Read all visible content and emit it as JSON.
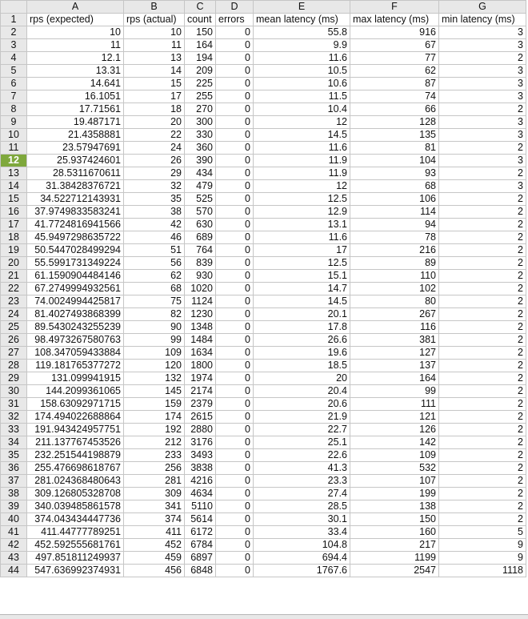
{
  "columns": [
    "A",
    "B",
    "C",
    "D",
    "E",
    "F",
    "G"
  ],
  "selected_row": "12",
  "header_row": {
    "row_label": "1",
    "cells": [
      "rps (expected)",
      "rps (actual)",
      "count",
      "errors",
      "mean latency (ms)",
      "max latency (ms)",
      "min latency (ms)"
    ]
  },
  "rows": [
    {
      "label": "2",
      "cells": [
        "10",
        "10",
        "150",
        "0",
        "55.8",
        "916",
        "3"
      ]
    },
    {
      "label": "3",
      "cells": [
        "11",
        "11",
        "164",
        "0",
        "9.9",
        "67",
        "3"
      ]
    },
    {
      "label": "4",
      "cells": [
        "12.1",
        "13",
        "194",
        "0",
        "11.6",
        "77",
        "2"
      ]
    },
    {
      "label": "5",
      "cells": [
        "13.31",
        "14",
        "209",
        "0",
        "10.5",
        "62",
        "3"
      ]
    },
    {
      "label": "6",
      "cells": [
        "14.641",
        "15",
        "225",
        "0",
        "10.6",
        "87",
        "3"
      ]
    },
    {
      "label": "7",
      "cells": [
        "16.1051",
        "17",
        "255",
        "0",
        "11.5",
        "74",
        "3"
      ]
    },
    {
      "label": "8",
      "cells": [
        "17.71561",
        "18",
        "270",
        "0",
        "10.4",
        "66",
        "2"
      ]
    },
    {
      "label": "9",
      "cells": [
        "19.487171",
        "20",
        "300",
        "0",
        "12",
        "128",
        "3"
      ]
    },
    {
      "label": "10",
      "cells": [
        "21.4358881",
        "22",
        "330",
        "0",
        "14.5",
        "135",
        "3"
      ]
    },
    {
      "label": "11",
      "cells": [
        "23.57947691",
        "24",
        "360",
        "0",
        "11.6",
        "81",
        "2"
      ]
    },
    {
      "label": "12",
      "cells": [
        "25.937424601",
        "26",
        "390",
        "0",
        "11.9",
        "104",
        "3"
      ]
    },
    {
      "label": "13",
      "cells": [
        "28.5311670611",
        "29",
        "434",
        "0",
        "11.9",
        "93",
        "2"
      ]
    },
    {
      "label": "14",
      "cells": [
        "31.38428376721",
        "32",
        "479",
        "0",
        "12",
        "68",
        "3"
      ]
    },
    {
      "label": "15",
      "cells": [
        "34.522712143931",
        "35",
        "525",
        "0",
        "12.5",
        "106",
        "2"
      ]
    },
    {
      "label": "16",
      "cells": [
        "37.9749833583241",
        "38",
        "570",
        "0",
        "12.9",
        "114",
        "2"
      ]
    },
    {
      "label": "17",
      "cells": [
        "41.7724816941566",
        "42",
        "630",
        "0",
        "13.1",
        "94",
        "2"
      ]
    },
    {
      "label": "18",
      "cells": [
        "45.9497298635722",
        "46",
        "689",
        "0",
        "11.6",
        "78",
        "2"
      ]
    },
    {
      "label": "19",
      "cells": [
        "50.5447028499294",
        "51",
        "764",
        "0",
        "17",
        "216",
        "2"
      ]
    },
    {
      "label": "20",
      "cells": [
        "55.5991731349224",
        "56",
        "839",
        "0",
        "12.5",
        "89",
        "2"
      ]
    },
    {
      "label": "21",
      "cells": [
        "61.1590904484146",
        "62",
        "930",
        "0",
        "15.1",
        "110",
        "2"
      ]
    },
    {
      "label": "22",
      "cells": [
        "67.2749994932561",
        "68",
        "1020",
        "0",
        "14.7",
        "102",
        "2"
      ]
    },
    {
      "label": "23",
      "cells": [
        "74.0024994425817",
        "75",
        "1124",
        "0",
        "14.5",
        "80",
        "2"
      ]
    },
    {
      "label": "24",
      "cells": [
        "81.4027493868399",
        "82",
        "1230",
        "0",
        "20.1",
        "267",
        "2"
      ]
    },
    {
      "label": "25",
      "cells": [
        "89.5430243255239",
        "90",
        "1348",
        "0",
        "17.8",
        "116",
        "2"
      ]
    },
    {
      "label": "26",
      "cells": [
        "98.4973267580763",
        "99",
        "1484",
        "0",
        "26.6",
        "381",
        "2"
      ]
    },
    {
      "label": "27",
      "cells": [
        "108.347059433884",
        "109",
        "1634",
        "0",
        "19.6",
        "127",
        "2"
      ]
    },
    {
      "label": "28",
      "cells": [
        "119.181765377272",
        "120",
        "1800",
        "0",
        "18.5",
        "137",
        "2"
      ]
    },
    {
      "label": "29",
      "cells": [
        "131.099941915",
        "132",
        "1974",
        "0",
        "20",
        "164",
        "2"
      ]
    },
    {
      "label": "30",
      "cells": [
        "144.2099361065",
        "145",
        "2174",
        "0",
        "20.4",
        "99",
        "2"
      ]
    },
    {
      "label": "31",
      "cells": [
        "158.63092971715",
        "159",
        "2379",
        "0",
        "20.6",
        "111",
        "2"
      ]
    },
    {
      "label": "32",
      "cells": [
        "174.494022688864",
        "174",
        "2615",
        "0",
        "21.9",
        "121",
        "2"
      ]
    },
    {
      "label": "33",
      "cells": [
        "191.943424957751",
        "192",
        "2880",
        "0",
        "22.7",
        "126",
        "2"
      ]
    },
    {
      "label": "34",
      "cells": [
        "211.137767453526",
        "212",
        "3176",
        "0",
        "25.1",
        "142",
        "2"
      ]
    },
    {
      "label": "35",
      "cells": [
        "232.251544198879",
        "233",
        "3493",
        "0",
        "22.6",
        "109",
        "2"
      ]
    },
    {
      "label": "36",
      "cells": [
        "255.476698618767",
        "256",
        "3838",
        "0",
        "41.3",
        "532",
        "2"
      ]
    },
    {
      "label": "37",
      "cells": [
        "281.024368480643",
        "281",
        "4216",
        "0",
        "23.3",
        "107",
        "2"
      ]
    },
    {
      "label": "38",
      "cells": [
        "309.126805328708",
        "309",
        "4634",
        "0",
        "27.4",
        "199",
        "2"
      ]
    },
    {
      "label": "39",
      "cells": [
        "340.039485861578",
        "341",
        "5110",
        "0",
        "28.5",
        "138",
        "2"
      ]
    },
    {
      "label": "40",
      "cells": [
        "374.043434447736",
        "374",
        "5614",
        "0",
        "30.1",
        "150",
        "2"
      ]
    },
    {
      "label": "41",
      "cells": [
        "411.44777789251",
        "411",
        "6172",
        "0",
        "33.4",
        "160",
        "5"
      ]
    },
    {
      "label": "42",
      "cells": [
        "452.592555681761",
        "452",
        "6784",
        "0",
        "104.8",
        "217",
        "9"
      ]
    },
    {
      "label": "43",
      "cells": [
        "497.851811249937",
        "459",
        "6897",
        "0",
        "694.4",
        "1199",
        "9"
      ]
    },
    {
      "label": "44",
      "cells": [
        "547.636992374931",
        "456",
        "6848",
        "0",
        "1767.6",
        "2547",
        "1118"
      ]
    }
  ]
}
